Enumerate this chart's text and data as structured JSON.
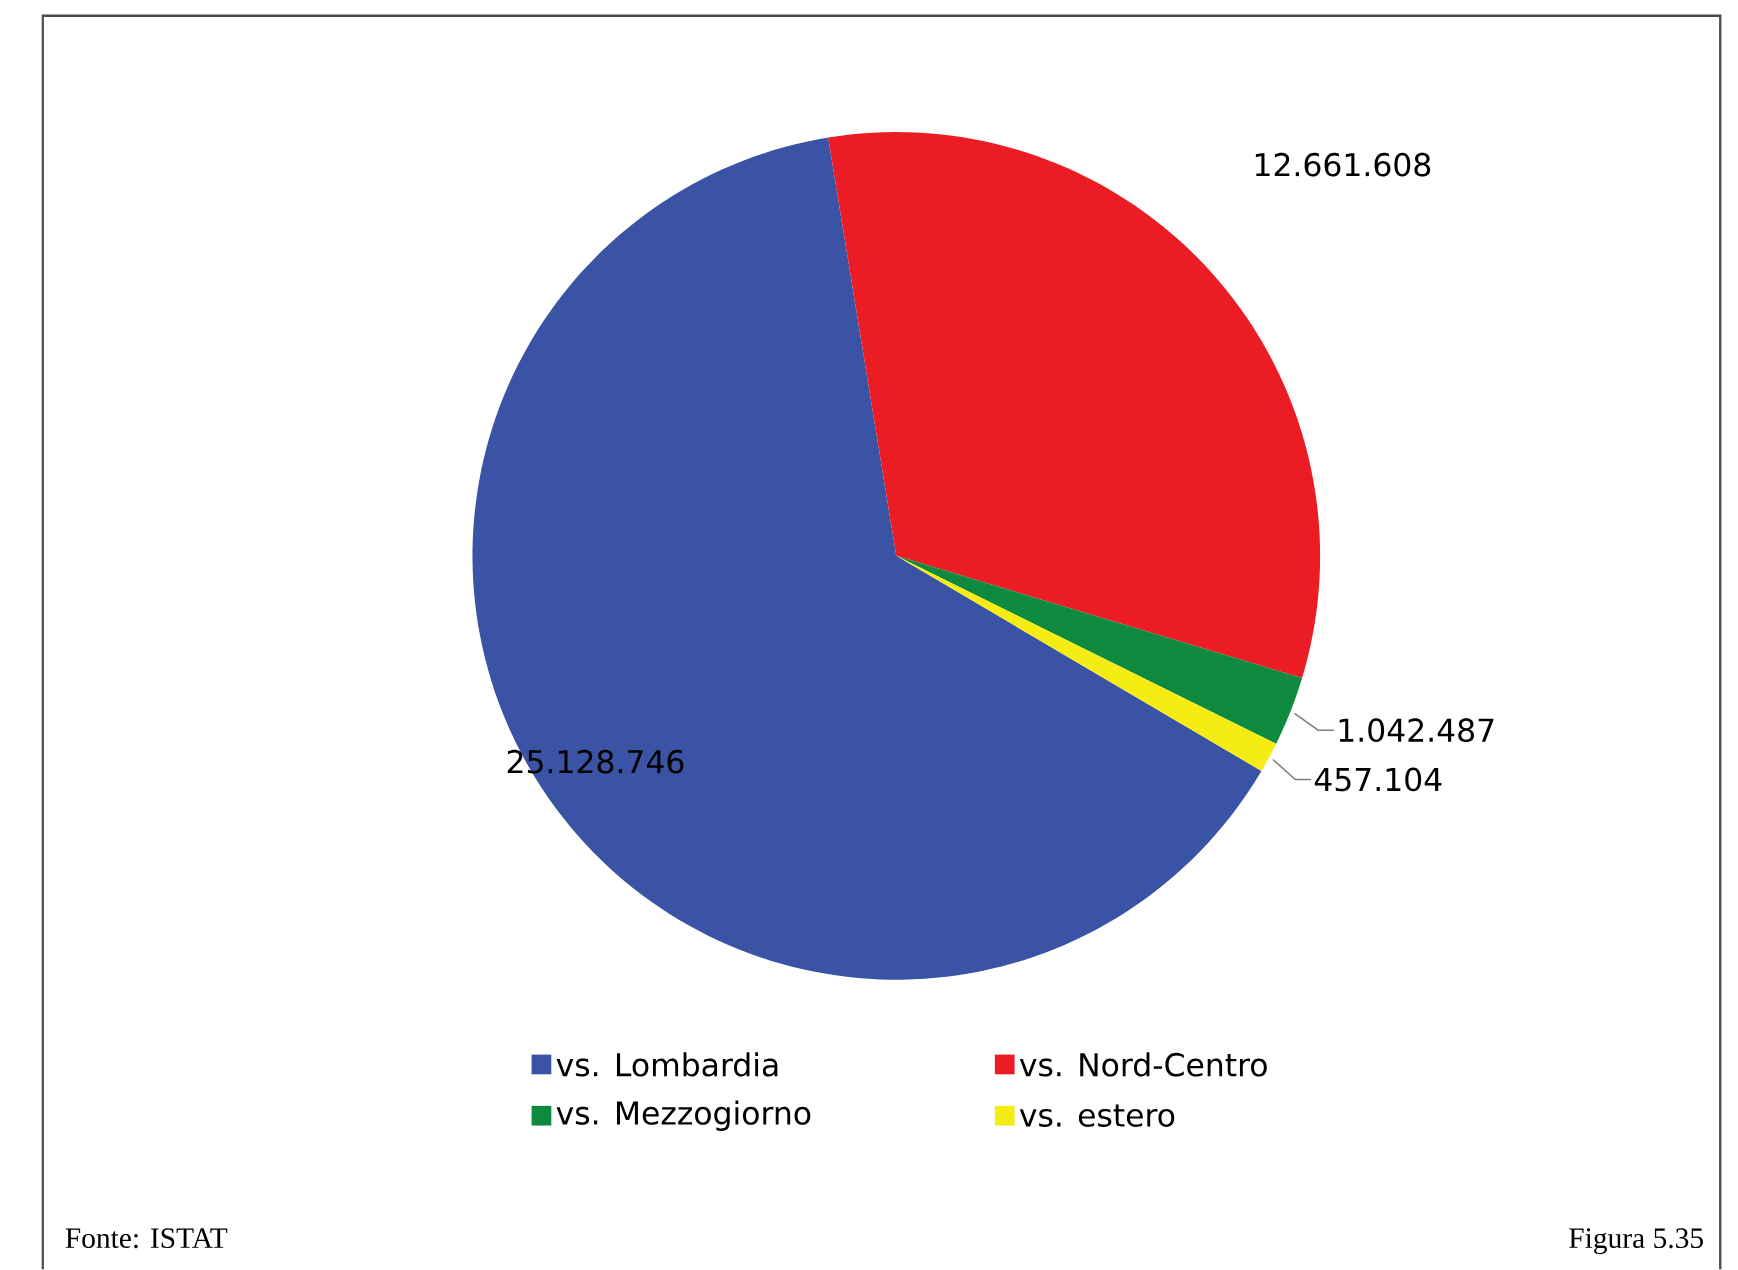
{
  "chart_data": {
    "type": "pie",
    "categories": [
      "vs. Lombardia",
      "vs. Nord-Centro",
      "vs. Mezzogiorno",
      "vs. estero"
    ],
    "values": [
      25128746,
      12661608,
      1042487,
      457104
    ],
    "value_labels": [
      "25.128.746",
      "12.661.608",
      "1.042.487",
      "457.104"
    ],
    "colors": [
      "#3a53a4",
      "#ec1c24",
      "#0d8a3e",
      "#f5ec13"
    ],
    "legend": "bottom",
    "annotations": [
      "Fonte: ISTAT",
      "Figura 5.35"
    ]
  }
}
